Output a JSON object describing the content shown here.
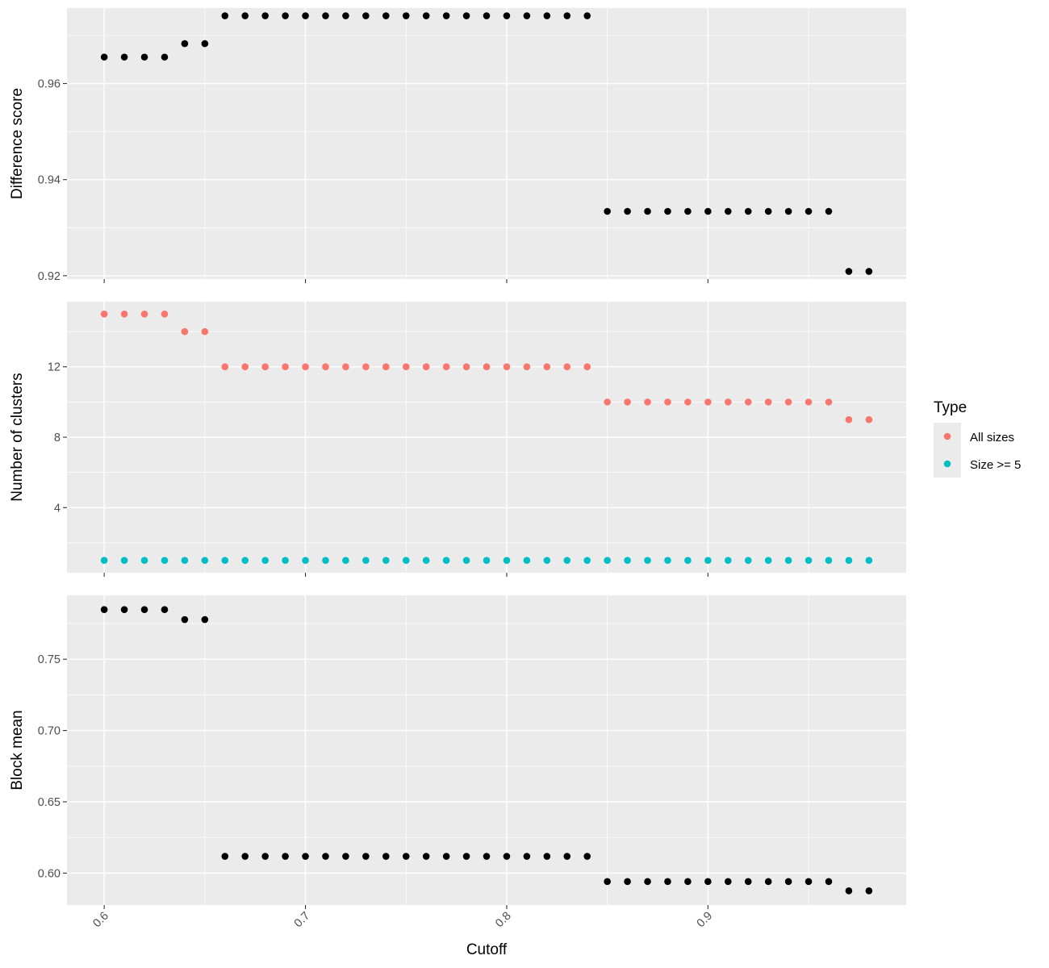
{
  "chart_data": {
    "type": "scatter",
    "xlabel": "Cutoff",
    "x_ticks": [
      0.6,
      0.7,
      0.8,
      0.9
    ],
    "x_tick_labels": [
      "0.6",
      "0.7",
      "0.8",
      "0.9"
    ],
    "xlim": [
      0.5815,
      0.9985
    ],
    "x": [
      0.6,
      0.61,
      0.62,
      0.63,
      0.64,
      0.65,
      0.66,
      0.67,
      0.68,
      0.69,
      0.7,
      0.71,
      0.72,
      0.73,
      0.74,
      0.75,
      0.76,
      0.77,
      0.78,
      0.79,
      0.8,
      0.81,
      0.82,
      0.83,
      0.84,
      0.85,
      0.86,
      0.87,
      0.88,
      0.89,
      0.9,
      0.91,
      0.92,
      0.93,
      0.94,
      0.95,
      0.96,
      0.97,
      0.98
    ],
    "panels": [
      {
        "ylabel": "Difference score",
        "ylim": [
          0.9193,
          0.9757
        ],
        "y_ticks": [
          0.92,
          0.94,
          0.96
        ],
        "y_tick_labels": [
          "0.92",
          "0.94",
          "0.96"
        ],
        "series": [
          {
            "color": "#000000",
            "values": [
              0.9655,
              0.9655,
              0.9655,
              0.9655,
              0.9683,
              0.9683,
              0.9741,
              0.9741,
              0.9741,
              0.9741,
              0.9741,
              0.9741,
              0.9741,
              0.9741,
              0.9741,
              0.9741,
              0.9741,
              0.9741,
              0.9741,
              0.9741,
              0.9741,
              0.9741,
              0.9741,
              0.9741,
              0.9741,
              0.9334,
              0.9334,
              0.9334,
              0.9334,
              0.9334,
              0.9334,
              0.9334,
              0.9334,
              0.9334,
              0.9334,
              0.9334,
              0.9334,
              0.9209,
              0.9209
            ]
          }
        ]
      },
      {
        "ylabel": "Number of clusters",
        "ylim": [
          0.3,
          15.7
        ],
        "y_ticks": [
          4,
          8,
          12
        ],
        "y_tick_labels": [
          "4",
          "8",
          "12"
        ],
        "series": [
          {
            "name": "All sizes",
            "color": "#f8766d",
            "values": [
              15,
              15,
              15,
              15,
              14,
              14,
              12,
              12,
              12,
              12,
              12,
              12,
              12,
              12,
              12,
              12,
              12,
              12,
              12,
              12,
              12,
              12,
              12,
              12,
              12,
              10,
              10,
              10,
              10,
              10,
              10,
              10,
              10,
              10,
              10,
              10,
              10,
              9,
              9
            ]
          },
          {
            "name": "Size >= 5",
            "color": "#00bfc4",
            "values": [
              1,
              1,
              1,
              1,
              1,
              1,
              1,
              1,
              1,
              1,
              1,
              1,
              1,
              1,
              1,
              1,
              1,
              1,
              1,
              1,
              1,
              1,
              1,
              1,
              1,
              1,
              1,
              1,
              1,
              1,
              1,
              1,
              1,
              1,
              1,
              1,
              1,
              1,
              1
            ]
          }
        ]
      },
      {
        "ylabel": "Block mean",
        "ylim": [
          0.5776,
          0.7948
        ],
        "y_ticks": [
          0.6,
          0.65,
          0.7,
          0.75
        ],
        "y_tick_labels": [
          "0.60",
          "0.65",
          "0.70",
          "0.75"
        ],
        "series": [
          {
            "color": "#000000",
            "values": [
              0.7848,
              0.7848,
              0.7848,
              0.7848,
              0.7778,
              0.7778,
              0.6118,
              0.6118,
              0.6118,
              0.6118,
              0.6118,
              0.6118,
              0.6118,
              0.6118,
              0.6118,
              0.6118,
              0.6118,
              0.6118,
              0.6118,
              0.6118,
              0.6118,
              0.6118,
              0.6118,
              0.6118,
              0.6118,
              0.5941,
              0.5941,
              0.5941,
              0.5941,
              0.5941,
              0.5941,
              0.5941,
              0.5941,
              0.5941,
              0.5941,
              0.5941,
              0.5941,
              0.5876,
              0.5876
            ]
          }
        ]
      }
    ],
    "legend": {
      "title": "Type",
      "placement": "right",
      "entries": [
        {
          "label": "All sizes",
          "color": "#f8766d"
        },
        {
          "label": "Size >= 5",
          "color": "#00bfc4"
        }
      ]
    },
    "grid": true
  }
}
